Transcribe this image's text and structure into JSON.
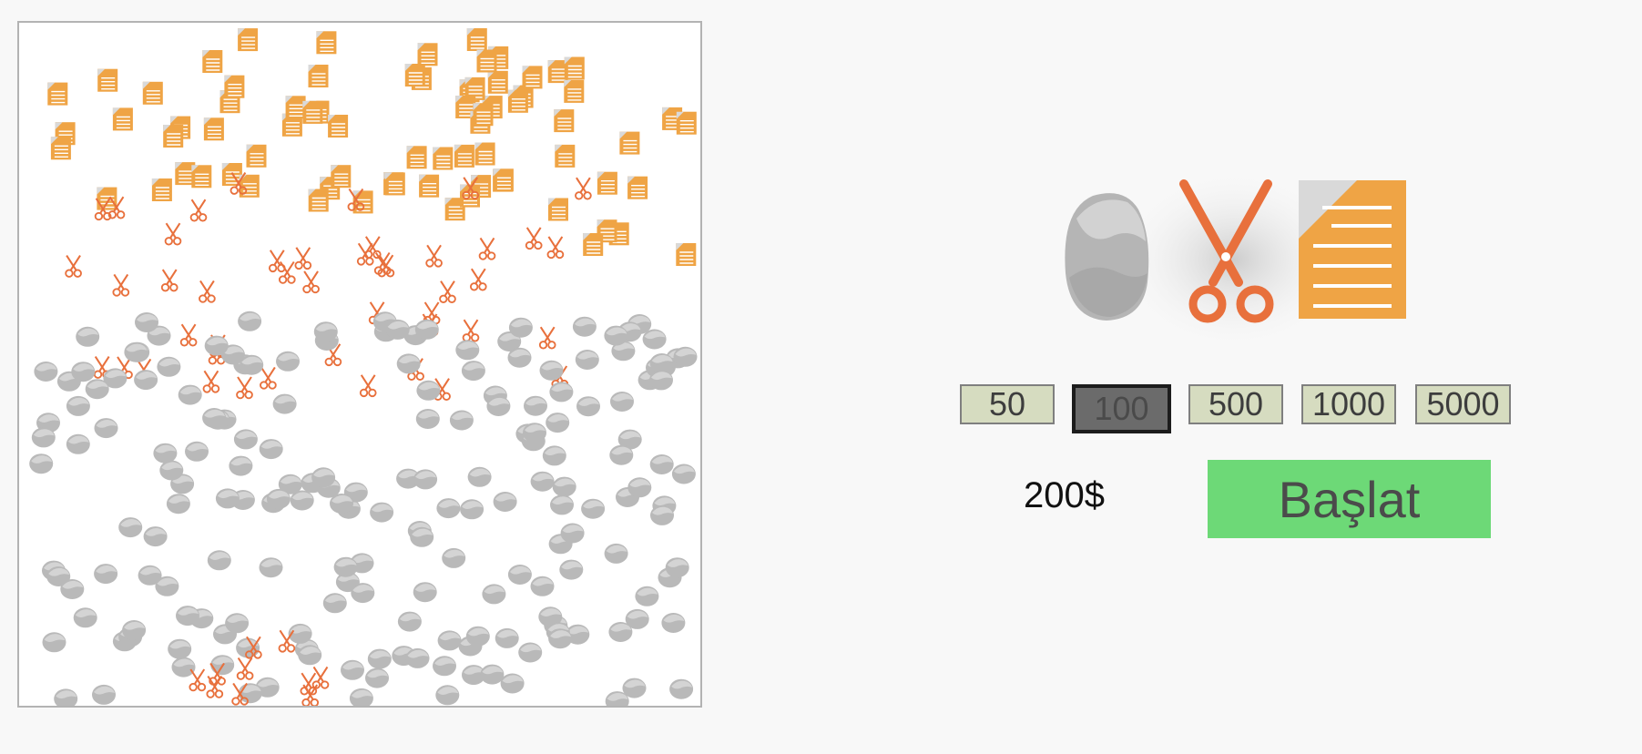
{
  "game": {
    "bet_options": [
      "50",
      "100",
      "500",
      "1000",
      "5000"
    ],
    "selected_bet": "100",
    "money": "200$",
    "start_label": "Başlat"
  },
  "colors": {
    "paper": "#efa445",
    "scissors": "#e8703c",
    "rock": "#b9b9b9",
    "start_button": "#6dd977",
    "bet_button": "#d6dcc0",
    "bet_selected": "#6b6b6b"
  },
  "icons": {
    "rock": "rock-icon",
    "scissors": "scissors-icon",
    "paper": "paper-icon"
  }
}
